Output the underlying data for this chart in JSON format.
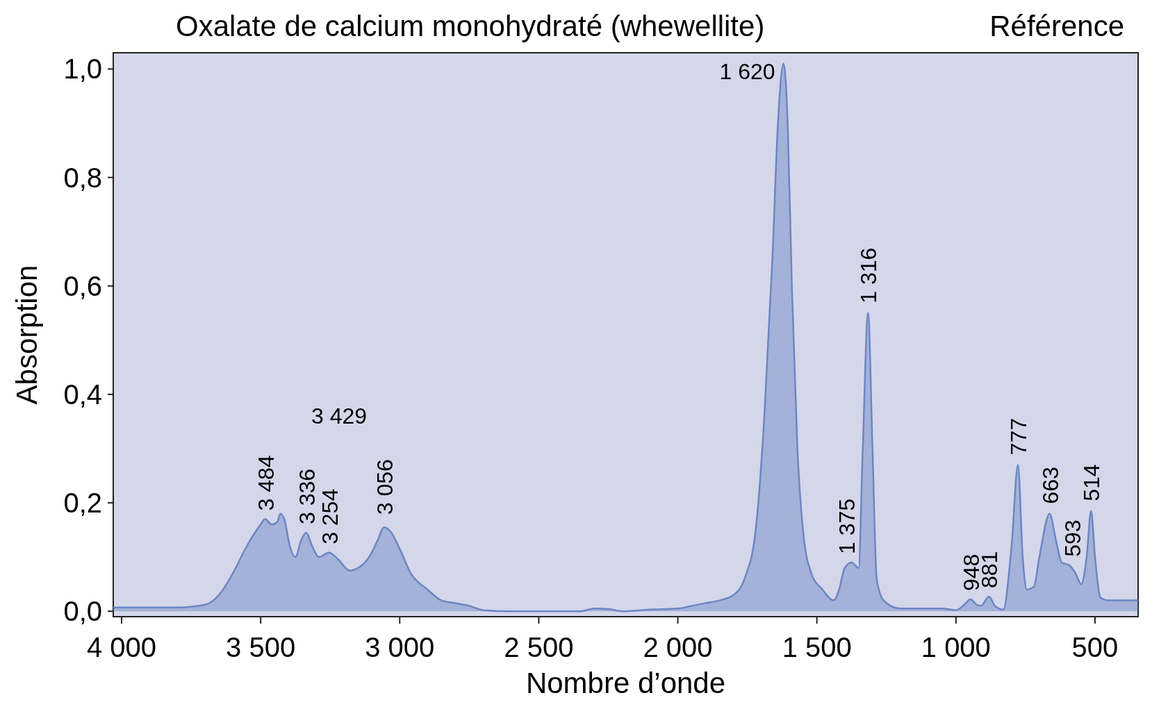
{
  "chart_data": {
    "type": "area",
    "title": "Oxalate de calcium monohydraté (whewellite)",
    "subtitle": "Référence",
    "xlabel": "Nombre d’onde",
    "ylabel": "Absorption",
    "xlim": [
      4030,
      345
    ],
    "ylim": [
      -0.01,
      1.03
    ],
    "xticks": [
      {
        "value": 4000,
        "label": "4 000"
      },
      {
        "value": 3500,
        "label": "3 500"
      },
      {
        "value": 3000,
        "label": "3 000"
      },
      {
        "value": 2500,
        "label": "2 500"
      },
      {
        "value": 2000,
        "label": "2 000"
      },
      {
        "value": 1500,
        "label": "1 500"
      },
      {
        "value": 1000,
        "label": "1 000"
      },
      500
    ],
    "yticks": [
      {
        "value": 0,
        "label": "0,0"
      },
      {
        "value": 0.2,
        "label": "0,2"
      },
      {
        "value": 0.4,
        "label": "0,4"
      },
      {
        "value": 0.6,
        "label": "0,6"
      },
      {
        "value": 0.8,
        "label": "0,8"
      },
      {
        "value": 1,
        "label": "1,0"
      }
    ],
    "grid": false,
    "series": [
      {
        "color": "#6b86c4",
        "x": [
          4030,
          3800,
          3700,
          3650,
          3600,
          3550,
          3500,
          3484,
          3460,
          3440,
          3429,
          3415,
          3395,
          3375,
          3355,
          3336,
          3315,
          3290,
          3254,
          3220,
          3180,
          3150,
          3110,
          3080,
          3056,
          3030,
          3000,
          2960,
          2900,
          2850,
          2800,
          2750,
          2700,
          2600,
          2350,
          2300,
          2250,
          2200,
          2100,
          2000,
          1950,
          1900,
          1850,
          1800,
          1760,
          1720,
          1690,
          1660,
          1640,
          1620,
          1605,
          1590,
          1570,
          1550,
          1520,
          1480,
          1440,
          1420,
          1400,
          1375,
          1350,
          1335,
          1316,
          1300,
          1285,
          1260,
          1200,
          1050,
          1000,
          970,
          948,
          925,
          910,
          881,
          860,
          830,
          800,
          777,
          760,
          745,
          720,
          700,
          663,
          640,
          620,
          593,
          570,
          550,
          530,
          514,
          500,
          480,
          450,
          345
        ],
        "values": [
          0.007,
          0.007,
          0.012,
          0.03,
          0.07,
          0.12,
          0.16,
          0.17,
          0.16,
          0.165,
          0.18,
          0.17,
          0.12,
          0.1,
          0.13,
          0.145,
          0.12,
          0.1,
          0.108,
          0.095,
          0.075,
          0.08,
          0.1,
          0.13,
          0.155,
          0.145,
          0.115,
          0.07,
          0.04,
          0.02,
          0.015,
          0.01,
          0.002,
          0,
          0,
          0.005,
          0.004,
          0,
          0.003,
          0.005,
          0.01,
          0.015,
          0.02,
          0.03,
          0.06,
          0.15,
          0.35,
          0.65,
          0.9,
          1.01,
          0.9,
          0.6,
          0.3,
          0.15,
          0.07,
          0.04,
          0.02,
          0.04,
          0.08,
          0.09,
          0.08,
          0.3,
          0.55,
          0.3,
          0.06,
          0.02,
          0.005,
          0.005,
          0.002,
          0.012,
          0.022,
          0.012,
          0.01,
          0.027,
          0.01,
          0.003,
          0.12,
          0.27,
          0.1,
          0.04,
          0.045,
          0.1,
          0.18,
          0.13,
          0.09,
          0.085,
          0.07,
          0.05,
          0.1,
          0.185,
          0.1,
          0.025,
          0.02,
          0.02
        ]
      }
    ],
    "annotations": [
      {
        "text": "3 484",
        "x": 3484,
        "y": 0.17
      },
      "3 429",
      {
        "text": "3 336",
        "x": 3336,
        "y": 0.145
      },
      {
        "text": "3 254",
        "x": 3254,
        "y": 0.108
      },
      {
        "text": "3 056",
        "x": 3056,
        "y": 0.155
      },
      {
        "text": "1 620",
        "x": 1620,
        "y": 1.01
      },
      {
        "text": "1 375",
        "x": 1375,
        "y": 0.09
      },
      {
        "text": "1 316",
        "x": 1316,
        "y": 0.55
      },
      {
        "text": "948",
        "x": 948,
        "y": 0.022
      },
      {
        "text": "881",
        "x": 881,
        "y": 0.027
      },
      {
        "text": "777",
        "x": 777,
        "y": 0.27
      },
      {
        "text": "663",
        "x": 663,
        "y": 0.18
      },
      {
        "text": "593",
        "x": 593,
        "y": 0.085
      },
      {
        "text": "514",
        "x": 514,
        "y": 0.185
      }
    ]
  }
}
